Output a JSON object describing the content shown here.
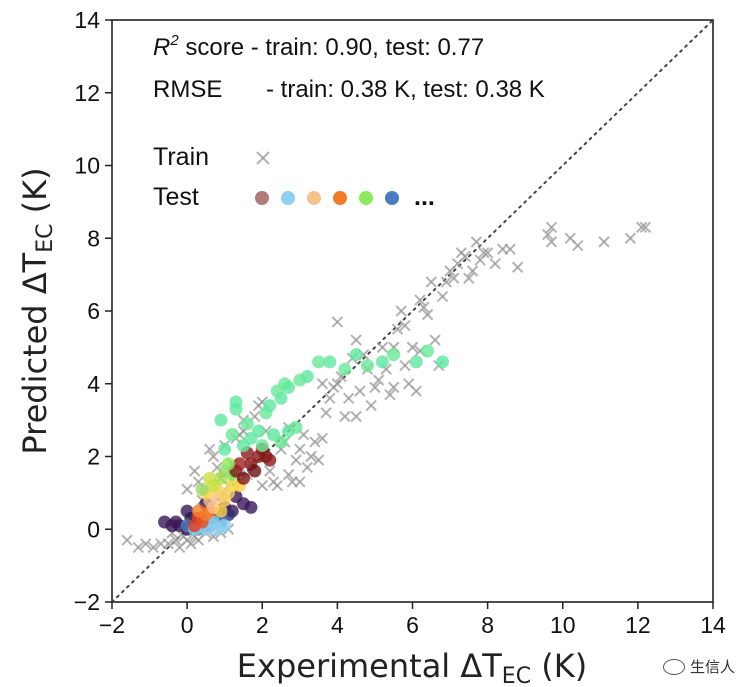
{
  "chart_data": {
    "type": "scatter",
    "title": "",
    "xlabel": "Experimental ΔT_EC (K)",
    "ylabel": "Predicted ΔT_EC (K)",
    "xlabel_main": "Experimental ΔT",
    "xlabel_sub": "EC",
    "xlabel_unit": " (K)",
    "ylabel_main": "Predicted ΔT",
    "ylabel_sub": "EC",
    "ylabel_unit": " (K)",
    "xlim": [
      -2,
      14
    ],
    "ylim": [
      -2,
      14
    ],
    "xticks": [
      -2,
      0,
      2,
      4,
      6,
      8,
      10,
      12,
      14
    ],
    "yticks": [
      -2,
      0,
      2,
      4,
      6,
      8,
      10,
      12,
      14
    ],
    "x_tick_labels": [
      "−2",
      "0",
      "2",
      "4",
      "6",
      "8",
      "10",
      "12",
      "14"
    ],
    "y_tick_labels": [
      "−2",
      "0",
      "2",
      "4",
      "6",
      "8",
      "10",
      "12",
      "14"
    ],
    "grid": false,
    "identity_line": {
      "from": [
        -2,
        -2
      ],
      "to": [
        14,
        14
      ],
      "style": "dotted",
      "color": "#444444"
    },
    "annotations": {
      "r2_symbol": "R",
      "r2_sup": "2",
      "r2_text": " score - train: 0.90,  test: 0.77",
      "rmse_label": "RMSE",
      "rmse_text": "- train: 0.38 K, test:  0.38 K"
    },
    "legend": {
      "placement": "top-left",
      "train_label": "Train",
      "test_label": "Test",
      "ellipsis": "...",
      "train_marker": "x",
      "train_color": "#9a9a9a",
      "test_colors": [
        "#b07a78",
        "#8ccff0",
        "#f7bf8c",
        "#f57a28",
        "#8aea5a",
        "#4a7cc0"
      ]
    },
    "series": [
      {
        "name": "Train",
        "marker": "x",
        "color": "#9a9a9a",
        "points": [
          [
            -1.6,
            -0.3
          ],
          [
            -1.3,
            -0.5
          ],
          [
            -1.1,
            -0.4
          ],
          [
            -0.9,
            -0.5
          ],
          [
            -0.7,
            -0.4
          ],
          [
            -0.5,
            -0.4
          ],
          [
            -0.3,
            -0.3
          ],
          [
            -0.2,
            -0.5
          ],
          [
            -0.1,
            -0.2
          ],
          [
            0.0,
            -0.3
          ],
          [
            0.1,
            -0.4
          ],
          [
            0.2,
            -0.2
          ],
          [
            0.3,
            -0.3
          ],
          [
            0.5,
            -0.1
          ],
          [
            0.7,
            -0.2
          ],
          [
            0.9,
            -0.1
          ],
          [
            1.1,
            0.0
          ],
          [
            -0.4,
            -0.1
          ],
          [
            0.4,
            0.1
          ],
          [
            0.6,
            0.3
          ],
          [
            0.0,
            1.1
          ],
          [
            0.2,
            1.6
          ],
          [
            0.3,
            1.3
          ],
          [
            0.5,
            0.9
          ],
          [
            0.6,
            2.2
          ],
          [
            0.7,
            2.0
          ],
          [
            0.8,
            1.7
          ],
          [
            0.9,
            1.4
          ],
          [
            1.0,
            2.3
          ],
          [
            1.1,
            1.2
          ],
          [
            1.2,
            1.8
          ],
          [
            1.3,
            2.5
          ],
          [
            1.4,
            2.6
          ],
          [
            1.5,
            3.0
          ],
          [
            1.6,
            1.5
          ],
          [
            1.7,
            1.8
          ],
          [
            1.8,
            3.1
          ],
          [
            1.9,
            3.4
          ],
          [
            2.0,
            3.5
          ],
          [
            2.1,
            2.7
          ],
          [
            2.2,
            1.6
          ],
          [
            2.3,
            1.3
          ],
          [
            2.4,
            1.2
          ],
          [
            2.5,
            2.2
          ],
          [
            2.6,
            2.4
          ],
          [
            2.7,
            1.5
          ],
          [
            2.8,
            1.3
          ],
          [
            2.9,
            1.9
          ],
          [
            3.0,
            2.2
          ],
          [
            3.1,
            2.6
          ],
          [
            3.2,
            1.7
          ],
          [
            3.3,
            2.0
          ],
          [
            3.4,
            2.4
          ],
          [
            3.5,
            1.9
          ],
          [
            3.6,
            2.5
          ],
          [
            3.7,
            3.2
          ],
          [
            3.8,
            3.6
          ],
          [
            3.9,
            3.9
          ],
          [
            4.0,
            4.0
          ],
          [
            4.1,
            4.2
          ],
          [
            4.2,
            3.1
          ],
          [
            4.3,
            3.6
          ],
          [
            4.4,
            4.7
          ],
          [
            4.5,
            3.1
          ],
          [
            4.6,
            3.8
          ],
          [
            4.7,
            4.8
          ],
          [
            4.8,
            4.4
          ],
          [
            4.9,
            3.4
          ],
          [
            5.0,
            3.9
          ],
          [
            5.1,
            4.1
          ],
          [
            5.2,
            5.0
          ],
          [
            5.3,
            4.4
          ],
          [
            5.4,
            3.7
          ],
          [
            5.5,
            3.9
          ],
          [
            5.6,
            5.5
          ],
          [
            5.7,
            6.0
          ],
          [
            5.8,
            4.5
          ],
          [
            5.9,
            4.0
          ],
          [
            6.0,
            5.0
          ],
          [
            6.1,
            3.8
          ],
          [
            6.2,
            4.9
          ],
          [
            6.3,
            6.1
          ],
          [
            6.4,
            5.9
          ],
          [
            6.5,
            6.8
          ],
          [
            6.6,
            5.2
          ],
          [
            6.7,
            4.5
          ],
          [
            6.8,
            6.4
          ],
          [
            6.9,
            6.8
          ],
          [
            7.0,
            7.1
          ],
          [
            7.1,
            6.9
          ],
          [
            7.2,
            7.3
          ],
          [
            7.3,
            7.6
          ],
          [
            7.4,
            7.5
          ],
          [
            7.5,
            6.9
          ],
          [
            7.6,
            7.1
          ],
          [
            7.7,
            7.9
          ],
          [
            7.8,
            7.4
          ],
          [
            7.9,
            7.6
          ],
          [
            8.0,
            7.6
          ],
          [
            8.2,
            7.3
          ],
          [
            8.4,
            7.7
          ],
          [
            8.6,
            7.7
          ],
          [
            8.8,
            7.2
          ],
          [
            9.6,
            8.1
          ],
          [
            9.7,
            7.9
          ],
          [
            10.2,
            8.0
          ],
          [
            10.4,
            7.8
          ],
          [
            11.1,
            7.9
          ],
          [
            11.8,
            8.0
          ],
          [
            12.1,
            8.3
          ],
          [
            12.2,
            8.3
          ],
          [
            4.5,
            5.2
          ],
          [
            3.6,
            4.0
          ],
          [
            2.7,
            2.8
          ],
          [
            1.2,
            1.4
          ],
          [
            1.5,
            2.7
          ],
          [
            0.1,
            0.3
          ],
          [
            0.4,
            0.8
          ],
          [
            2.0,
            1.2
          ],
          [
            3.0,
            1.3
          ],
          [
            5.5,
            5.0
          ],
          [
            4.0,
            5.7
          ],
          [
            6.2,
            6.3
          ],
          [
            9.7,
            8.3
          ],
          [
            5.8,
            5.6
          ]
        ]
      },
      {
        "name": "Test",
        "marker": "circle",
        "points": [
          [
            -0.6,
            0.2,
            "#3a1858"
          ],
          [
            -0.4,
            0.1,
            "#3a1858"
          ],
          [
            -0.3,
            0.2,
            "#3a1858"
          ],
          [
            -0.2,
            0.1,
            "#3a1858"
          ],
          [
            0.0,
            0.0,
            "#3a1858"
          ],
          [
            0.0,
            0.5,
            "#3a1858"
          ],
          [
            0.1,
            0.3,
            "#2b1a4a"
          ],
          [
            0.5,
            0.7,
            "#3a1858"
          ],
          [
            1.0,
            0.6,
            "#3a1858"
          ],
          [
            1.2,
            0.5,
            "#3a1858"
          ],
          [
            1.5,
            0.7,
            "#3a1858"
          ],
          [
            1.7,
            0.6,
            "#3a1858"
          ],
          [
            1.1,
            0.4,
            "#2e2f72"
          ],
          [
            1.3,
            0.9,
            "#3a1858"
          ],
          [
            0.8,
            0.4,
            "#1f2a66"
          ],
          [
            0.0,
            0.1,
            "#4a7cc0"
          ],
          [
            0.3,
            0.0,
            "#4a7cc0"
          ],
          [
            0.6,
            0.1,
            "#4a7cc0"
          ],
          [
            0.9,
            0.2,
            "#4a7cc0"
          ],
          [
            0.4,
            0.3,
            "#6c9ee0"
          ],
          [
            0.2,
            0.0,
            "#8ccff0"
          ],
          [
            0.5,
            0.0,
            "#8ccff0"
          ],
          [
            0.7,
            0.2,
            "#8ccff0"
          ],
          [
            0.8,
            0.0,
            "#8ccff0"
          ],
          [
            1.0,
            0.1,
            "#8ccff0"
          ],
          [
            0.3,
            0.3,
            "#e03a1e"
          ],
          [
            0.2,
            0.1,
            "#e03a1e"
          ],
          [
            0.4,
            0.2,
            "#e85020"
          ],
          [
            0.5,
            0.4,
            "#f57a28"
          ],
          [
            0.3,
            0.5,
            "#f57a28"
          ],
          [
            0.6,
            0.5,
            "#f57a28"
          ],
          [
            0.6,
            0.8,
            "#f7bf8c"
          ],
          [
            0.7,
            0.6,
            "#f7bf8c"
          ],
          [
            0.9,
            0.9,
            "#f7bf8c"
          ],
          [
            1.0,
            0.8,
            "#f7d060"
          ],
          [
            1.1,
            1.0,
            "#f7d060"
          ],
          [
            0.8,
            1.1,
            "#f7d060"
          ],
          [
            1.2,
            1.2,
            "#f5e050"
          ],
          [
            0.5,
            1.0,
            "#f5e050"
          ],
          [
            0.7,
            1.2,
            "#c8e040"
          ],
          [
            0.9,
            1.4,
            "#b0e048"
          ],
          [
            1.0,
            1.6,
            "#9ad86a"
          ],
          [
            1.2,
            1.5,
            "#8aea5a"
          ],
          [
            1.4,
            1.2,
            "#ffd24a"
          ],
          [
            0.9,
            0.5,
            "#ffd24a"
          ],
          [
            1.3,
            1.6,
            "#7a1414"
          ],
          [
            1.5,
            1.4,
            "#7a1414"
          ],
          [
            1.7,
            1.8,
            "#8b1a1a"
          ],
          [
            1.9,
            2.0,
            "#8b1a1a"
          ],
          [
            2.1,
            2.0,
            "#7a1414"
          ],
          [
            1.6,
            2.1,
            "#8b1a1a"
          ],
          [
            2.2,
            1.9,
            "#8b1a1a"
          ],
          [
            1.4,
            1.8,
            "#a02020"
          ],
          [
            1.8,
            1.6,
            "#6b1010"
          ],
          [
            2.0,
            2.2,
            "#8b1a1a"
          ],
          [
            1.5,
            2.3,
            "#5fe8a0"
          ],
          [
            1.7,
            2.5,
            "#5fe8a0"
          ],
          [
            1.2,
            2.6,
            "#6ae896"
          ],
          [
            1.9,
            2.7,
            "#5fe8a0"
          ],
          [
            2.0,
            2.3,
            "#6ae896"
          ],
          [
            2.3,
            2.6,
            "#5fe8a0"
          ],
          [
            2.5,
            2.4,
            "#6ae896"
          ],
          [
            2.7,
            2.7,
            "#5fe8a0"
          ],
          [
            2.9,
            2.8,
            "#6ae896"
          ],
          [
            1.3,
            3.3,
            "#5fe8a0"
          ],
          [
            1.3,
            3.5,
            "#5fe8a0"
          ],
          [
            2.1,
            3.2,
            "#6ae896"
          ],
          [
            2.2,
            3.4,
            "#5fe8a0"
          ],
          [
            2.4,
            3.8,
            "#6ae896"
          ],
          [
            2.5,
            3.6,
            "#5fe8a0"
          ],
          [
            2.6,
            4.0,
            "#6ae896"
          ],
          [
            2.7,
            3.9,
            "#5fe8a0"
          ],
          [
            3.0,
            4.1,
            "#6ae896"
          ],
          [
            3.2,
            4.2,
            "#5fe8a0"
          ],
          [
            3.5,
            4.6,
            "#6ae896"
          ],
          [
            3.8,
            4.6,
            "#5fe8a0"
          ],
          [
            4.2,
            4.4,
            "#6ae896"
          ],
          [
            4.5,
            4.8,
            "#5fe8a0"
          ],
          [
            4.8,
            4.5,
            "#6ae896"
          ],
          [
            5.2,
            4.6,
            "#5fe8a0"
          ],
          [
            5.5,
            4.8,
            "#6ae896"
          ],
          [
            6.1,
            4.6,
            "#5fe8a0"
          ],
          [
            6.4,
            4.9,
            "#6ae896"
          ],
          [
            6.8,
            4.6,
            "#5fe8a0"
          ],
          [
            0.9,
            3.0,
            "#5fe8a0"
          ],
          [
            1.0,
            2.2,
            "#5fe8a0"
          ],
          [
            1.1,
            1.8,
            "#8aea5a"
          ],
          [
            0.6,
            1.4,
            "#c8e040"
          ],
          [
            0.4,
            1.1,
            "#9ad86a"
          ],
          [
            1.6,
            2.9,
            "#6ae896"
          ]
        ]
      }
    ]
  },
  "watermark": {
    "text": "生信人"
  }
}
